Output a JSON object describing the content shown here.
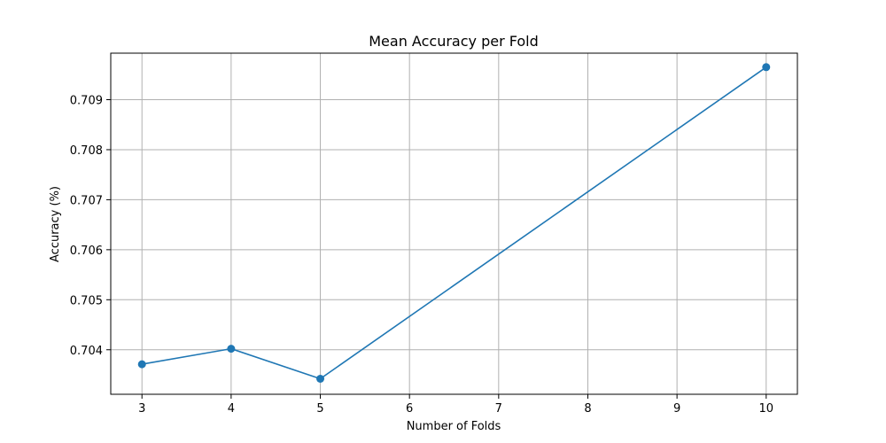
{
  "chart_data": {
    "type": "line",
    "title": "Mean Accuracy per Fold",
    "xlabel": "Number of Folds",
    "ylabel": "Accuracy (%)",
    "x": [
      3,
      4,
      5,
      10
    ],
    "series": [
      {
        "values": [
          0.70371,
          0.70402,
          0.70342,
          0.70965
        ],
        "color": "#1f77b4"
      }
    ],
    "xticks": [
      3,
      4,
      5,
      6,
      7,
      8,
      9,
      10
    ],
    "xtick_labels": [
      "3",
      "4",
      "5",
      "6",
      "7",
      "8",
      "9",
      "10"
    ],
    "yticks": [
      0.704,
      0.705,
      0.706,
      0.707,
      0.708,
      0.709
    ],
    "ytick_labels": [
      "0.704",
      "0.705",
      "0.706",
      "0.707",
      "0.708",
      "0.709"
    ],
    "xlim": [
      2.65,
      10.35
    ],
    "ylim": [
      0.70311,
      0.70993
    ],
    "grid": true,
    "marker": "circle"
  }
}
